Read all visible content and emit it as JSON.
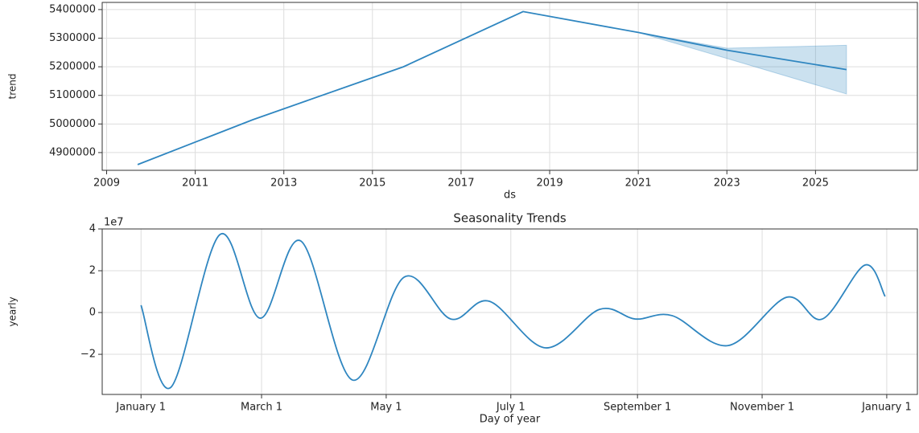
{
  "chart_data": [
    {
      "type": "line",
      "ylabel": "trend",
      "xlabel": "ds",
      "x": [
        2009.7,
        2012.3,
        2015.7,
        2018.4,
        2021,
        2023,
        2025.7
      ],
      "series": [
        {
          "name": "trend",
          "color": "#2f86c0",
          "values": [
            4858000,
            5015000,
            5200000,
            5393000,
            5320000,
            5258000,
            5190000
          ]
        }
      ],
      "band": {
        "color": "#2f86c0",
        "x": [
          2021,
          2023,
          2025.7
        ],
        "lower": [
          5320000,
          5229000,
          5105000
        ],
        "upper": [
          5320000,
          5265000,
          5275000
        ]
      },
      "xlim": [
        2008.9,
        2027.3
      ],
      "ylim": [
        4838000,
        5425000
      ],
      "xticks": [
        2009,
        2011,
        2013,
        2015,
        2017,
        2019,
        2021,
        2023,
        2025
      ],
      "yticks": [
        4900000,
        5000000,
        5100000,
        5200000,
        5300000,
        5400000
      ],
      "grid": true
    },
    {
      "type": "line",
      "title": "Seasonality Trends",
      "ylabel": "yearly",
      "xlabel": "Day of year",
      "offset_label": "1e7",
      "x": [
        0,
        14.6,
        38.6,
        58.3,
        78.3,
        103.5,
        128.7,
        151.6,
        170.5,
        198,
        224.4,
        242,
        260,
        287.4,
        316,
        333.5,
        354.3,
        364.2
      ],
      "series": [
        {
          "name": "yearly",
          "color": "#2f86c0",
          "values": [
            0.35,
            -3.58,
            3.73,
            -0.27,
            3.42,
            -3.23,
            1.69,
            -0.31,
            0.54,
            -1.69,
            0.15,
            -0.31,
            -0.15,
            -1.58,
            0.73,
            -0.31,
            2.27,
            0.77
          ]
        }
      ],
      "xlim": [
        -19,
        380
      ],
      "ylim": [
        -3.92,
        4
      ],
      "xticks": [
        {
          "value": 0,
          "label": "January 1"
        },
        {
          "value": 59,
          "label": "March 1"
        },
        {
          "value": 120,
          "label": "May 1"
        },
        {
          "value": 181,
          "label": "July 1"
        },
        {
          "value": 243,
          "label": "September 1"
        },
        {
          "value": 304,
          "label": "November 1"
        },
        {
          "value": 365,
          "label": "January 1"
        }
      ],
      "yticks": [
        4,
        2,
        0,
        {
          "value": -2,
          "label": "−2"
        }
      ],
      "grid": true,
      "smooth": true
    }
  ]
}
